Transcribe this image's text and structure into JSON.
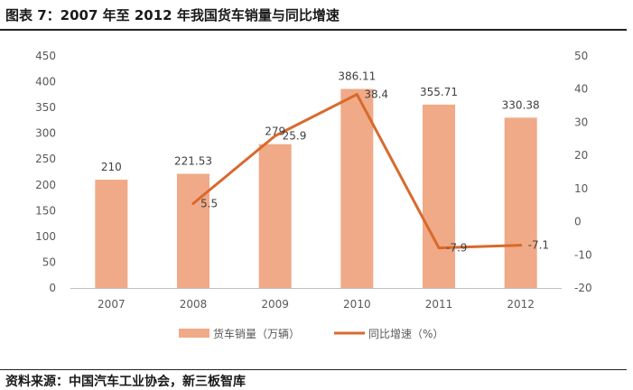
{
  "figure": {
    "title": "图表 7：2007 年至 2012 年我国货车销量与同比增速",
    "source": "资料来源：中国汽车工业协会，新三板智库"
  },
  "chart_data": {
    "type": "bar",
    "categories": [
      "2007",
      "2008",
      "2009",
      "2010",
      "2011",
      "2012"
    ],
    "series": [
      {
        "name": "货车销量（万辆）",
        "type": "bar",
        "axis": "left",
        "values": [
          210,
          221.53,
          279,
          386.11,
          355.71,
          330.38
        ],
        "labels": [
          "210",
          "221.53",
          "279",
          "386.11",
          "355.71",
          "330.38"
        ],
        "color": "#f0aa87"
      },
      {
        "name": "同比增速（%）",
        "type": "line",
        "axis": "right",
        "values": [
          null,
          5.5,
          25.9,
          38.4,
          -7.9,
          -7.1
        ],
        "labels": [
          "",
          "5.5",
          "25.9",
          "38.4",
          "-7.9",
          "-7.1"
        ],
        "color": "#d9692e"
      }
    ],
    "y_left": {
      "min": 0,
      "max": 450,
      "step": 50,
      "ticks": [
        "0",
        "50",
        "100",
        "150",
        "200",
        "250",
        "300",
        "350",
        "400",
        "450"
      ]
    },
    "y_right": {
      "min": -20,
      "max": 50,
      "step": 10,
      "ticks": [
        "-20",
        "-10",
        "0",
        "10",
        "20",
        "30",
        "40",
        "50"
      ]
    },
    "grid": false,
    "legend_position": "bottom"
  }
}
